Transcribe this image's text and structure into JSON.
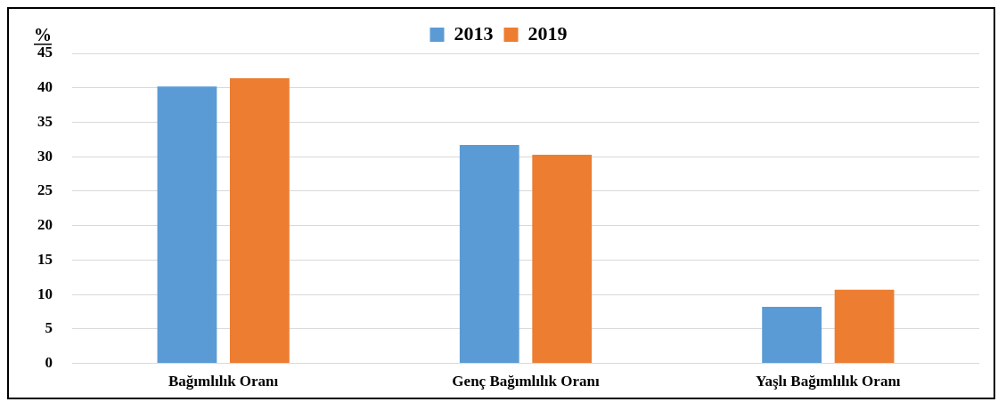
{
  "chart_data": {
    "type": "bar",
    "ylabel": "%",
    "categories": [
      "Bağımlılık Oranı",
      "Genç Bağımlılık Oranı",
      "Yaşlı Bağımlılık Oranı"
    ],
    "series": [
      {
        "name": "2013",
        "color": "#5b9bd5",
        "values": [
          40.2,
          31.7,
          8.2
        ]
      },
      {
        "name": "2019",
        "color": "#ed7d31",
        "values": [
          41.4,
          30.3,
          10.7
        ]
      }
    ],
    "ylim": [
      0,
      45
    ],
    "yticks": [
      0,
      5,
      10,
      15,
      20,
      25,
      30,
      35,
      40,
      45
    ],
    "grid": "y",
    "legend": "top"
  }
}
